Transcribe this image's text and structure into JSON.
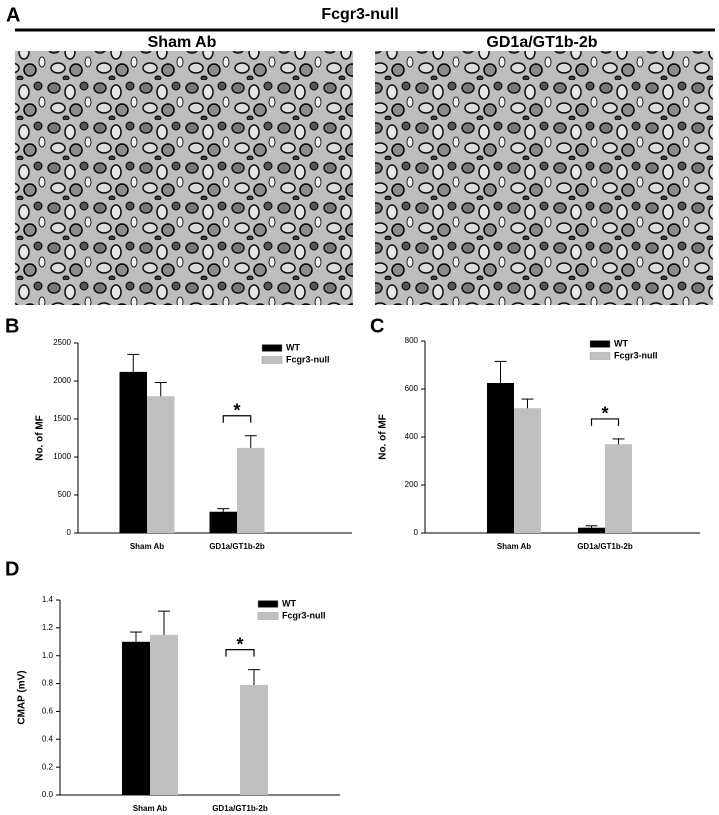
{
  "panel_labels": [
    "A",
    "B",
    "C",
    "D"
  ],
  "header": "Fcgr3-null",
  "micrographs": [
    {
      "title": "Sham Ab"
    },
    {
      "title": "GD1a/GT1b-2b"
    }
  ],
  "chart_data": [
    {
      "type": "bar",
      "ylabel": "No. of MF",
      "categories": [
        "Sham Ab",
        "GD1a/GT1b-2b"
      ],
      "series": [
        {
          "name": "WT",
          "color": "#000000",
          "values": [
            2120,
            280
          ],
          "errors": [
            230,
            40
          ]
        },
        {
          "name": "Fcgr3-null",
          "color": "#c0c0c0",
          "values": [
            1800,
            1120
          ],
          "errors": [
            180,
            160
          ]
        }
      ],
      "ylim": [
        0,
        2500
      ],
      "yticks": [
        0,
        500,
        1000,
        1500,
        2000,
        2500
      ],
      "annotation": "*"
    },
    {
      "type": "bar",
      "ylabel": "No. of MF",
      "categories": [
        "Sham Ab",
        "GD1a/GT1b-2b"
      ],
      "series": [
        {
          "name": "WT",
          "color": "#000000",
          "values": [
            625,
            22
          ],
          "errors": [
            90,
            8
          ]
        },
        {
          "name": "Fcgr3-null",
          "color": "#c0c0c0",
          "values": [
            520,
            370
          ],
          "errors": [
            38,
            22
          ]
        }
      ],
      "ylim": [
        0,
        800
      ],
      "yticks": [
        0,
        200,
        400,
        600,
        800
      ],
      "annotation": "*"
    },
    {
      "type": "bar",
      "ylabel": "CMAP (mV)",
      "categories": [
        "Sham Ab",
        "GD1a/GT1b-2b"
      ],
      "series": [
        {
          "name": "WT",
          "color": "#000000",
          "values": [
            1.1,
            0
          ],
          "errors": [
            0.07,
            null
          ]
        },
        {
          "name": "Fcgr3-null",
          "color": "#c0c0c0",
          "values": [
            1.15,
            0.79
          ],
          "errors": [
            0.17,
            0.11
          ]
        }
      ],
      "ylim": [
        0,
        1.4
      ],
      "yticks": [
        {
          "value": 0,
          "label": "0.0"
        },
        0.2,
        0.4,
        0.6,
        0.8,
        {
          "value": 1,
          "label": "1.0"
        },
        1.2,
        1.4
      ],
      "annotation": "*"
    }
  ]
}
